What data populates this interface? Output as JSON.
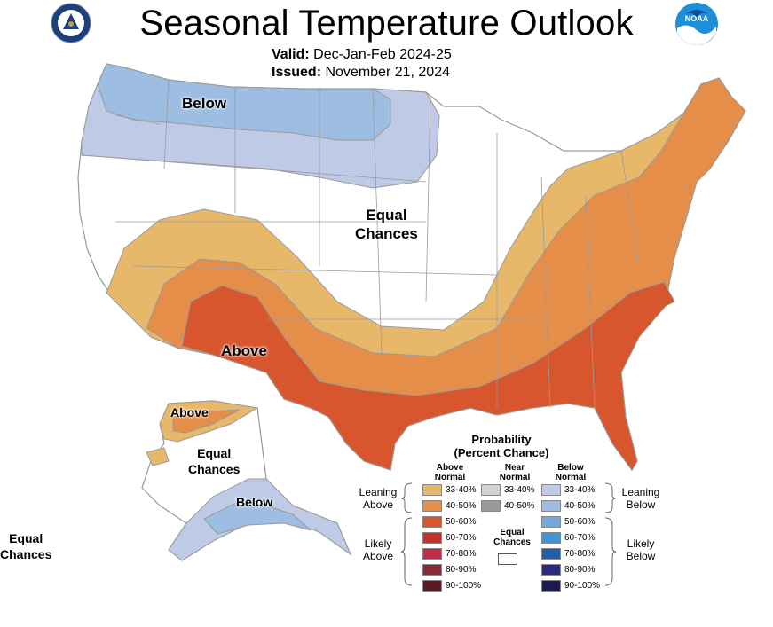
{
  "header": {
    "title": "Seasonal Temperature Outlook",
    "valid_label": "Valid:",
    "valid_value": "Dec-Jan-Feb 2024-25",
    "issued_label": "Issued:",
    "issued_value": "November 21, 2024",
    "noaa_text": "NOAA"
  },
  "map": {
    "labels": {
      "below_conus": "Below",
      "equal_chances_conus_1": "Equal",
      "equal_chances_conus_2": "Chances",
      "above_conus": "Above",
      "above_alaska": "Above",
      "equal_chances_alaska_1": "Equal",
      "equal_chances_alaska_2": "Chances",
      "below_alaska": "Below",
      "equal_chances_hawaii_1": "Equal",
      "equal_chances_hawaii_2": "Chances"
    },
    "colors": {
      "below_33_40": "#bfcbe6",
      "below_40_50": "#9dbde2",
      "above_33_40": "#e8b86a",
      "above_40_50": "#e48e4a",
      "above_50_60": "#d8562e",
      "land": "#ffffff",
      "border": "#9a9a9a"
    }
  },
  "legend": {
    "title_line1": "Probability",
    "title_line2": "(Percent Chance)",
    "above_head_1": "Above",
    "above_head_2": "Normal",
    "near_head_1": "Near",
    "near_head_2": "Normal",
    "below_head_1": "Below",
    "below_head_2": "Normal",
    "leaning_above_1": "Leaning",
    "leaning_above_2": "Above",
    "likely_above_1": "Likely",
    "likely_above_2": "Above",
    "leaning_below_1": "Leaning",
    "leaning_below_2": "Below",
    "likely_below_1": "Likely",
    "likely_below_2": "Below",
    "equal_1": "Equal",
    "equal_2": "Chances",
    "above": [
      {
        "label": "33-40%",
        "color": "#e8b86a"
      },
      {
        "label": "40-50%",
        "color": "#e48e4a"
      },
      {
        "label": "50-60%",
        "color": "#d8562e"
      },
      {
        "label": "60-70%",
        "color": "#c83028"
      },
      {
        "label": "70-80%",
        "color": "#c42a45"
      },
      {
        "label": "80-90%",
        "color": "#8a2a36"
      },
      {
        "label": "90-100%",
        "color": "#5c1a1e"
      }
    ],
    "near": [
      {
        "label": "33-40%",
        "color": "#d2d2d2"
      },
      {
        "label": "40-50%",
        "color": "#9a9a9a"
      }
    ],
    "below": [
      {
        "label": "33-40%",
        "color": "#bfcbe6"
      },
      {
        "label": "40-50%",
        "color": "#9dbde2"
      },
      {
        "label": "50-60%",
        "color": "#73a9de"
      },
      {
        "label": "60-70%",
        "color": "#3e96d6"
      },
      {
        "label": "70-80%",
        "color": "#1f5fa8"
      },
      {
        "label": "80-90%",
        "color": "#2a2a7e"
      },
      {
        "label": "90-100%",
        "color": "#1c1a50"
      }
    ]
  }
}
